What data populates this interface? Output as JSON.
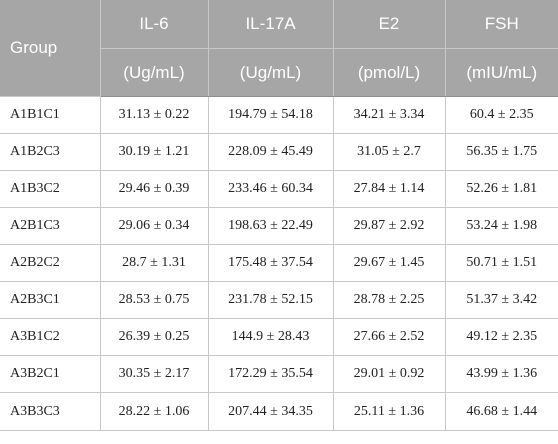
{
  "table": {
    "headers": {
      "group": "Group",
      "columns": [
        {
          "name": "IL-6",
          "unit": "(Ug/mL)"
        },
        {
          "name": "IL-17A",
          "unit": "(Ug/mL)"
        },
        {
          "name": "E2",
          "unit": "(pmol/L)"
        },
        {
          "name": "FSH",
          "unit": "(mIU/mL)"
        }
      ]
    },
    "rows": [
      {
        "group": "A1B1C1",
        "values": [
          "31.13 ± 0.22",
          "194.79 ± 54.18",
          "34.21 ± 3.34",
          "60.4 ± 2.35"
        ]
      },
      {
        "group": "A1B2C3",
        "values": [
          "30.19 ± 1.21",
          "228.09 ± 45.49",
          "31.05 ± 2.7",
          "56.35 ± 1.75"
        ]
      },
      {
        "group": "A1B3C2",
        "values": [
          "29.46 ± 0.39",
          "233.46 ± 60.34",
          "27.84 ± 1.14",
          "52.26 ± 1.81"
        ]
      },
      {
        "group": "A2B1C3",
        "values": [
          "29.06 ± 0.34",
          "198.63 ± 22.49",
          "29.87 ± 2.92",
          "53.24 ± 1.98"
        ]
      },
      {
        "group": "A2B2C2",
        "values": [
          "28.7 ± 1.31",
          "175.48 ± 37.54",
          "29.67 ± 1.45",
          "50.71 ± 1.51"
        ]
      },
      {
        "group": "A2B3C1",
        "values": [
          "28.53 ± 0.75",
          "231.78 ± 52.15",
          "28.78 ± 2.25",
          "51.37 ± 3.42"
        ]
      },
      {
        "group": "A3B1C2",
        "values": [
          "26.39 ± 0.25",
          "144.9 ± 28.43",
          "27.66 ± 2.52",
          "49.12 ± 2.35"
        ]
      },
      {
        "group": "A3B2C1",
        "values": [
          "30.35 ± 2.17",
          "172.29 ± 35.54",
          "29.01 ± 0.92",
          "43.99 ± 1.36"
        ]
      },
      {
        "group": "A3B3C3",
        "values": [
          "28.22 ± 1.06",
          "207.44 ± 34.35",
          "25.11 ± 1.36",
          "46.68 ± 1.44"
        ]
      }
    ]
  }
}
